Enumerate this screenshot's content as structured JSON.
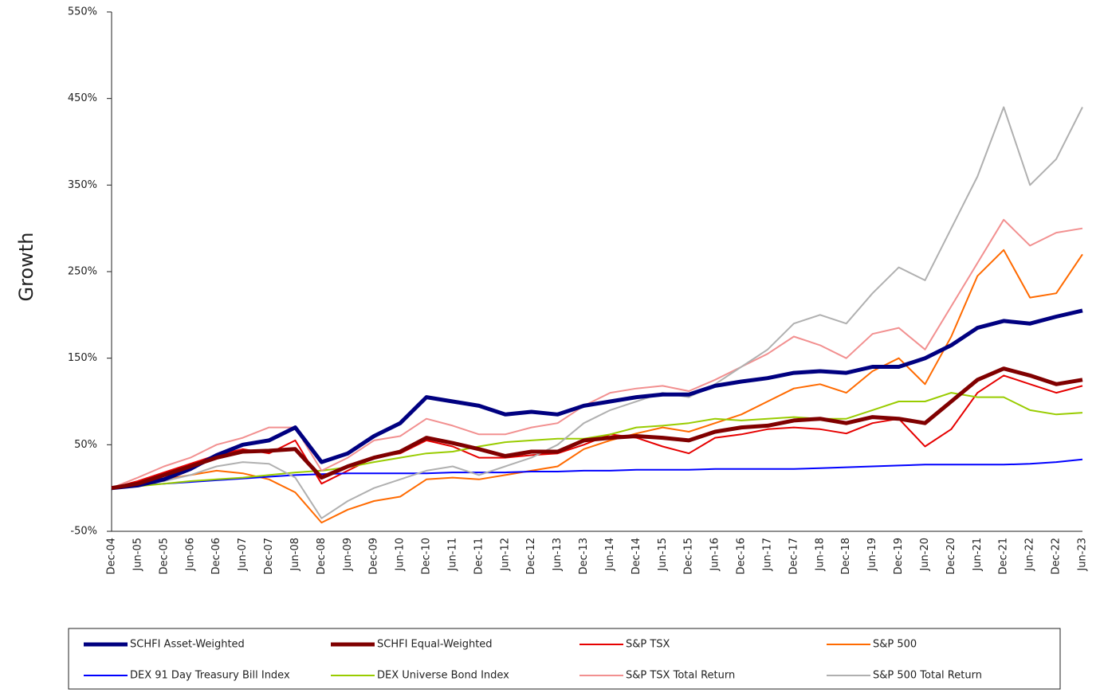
{
  "chart_data": {
    "type": "line",
    "y_label": "Growth",
    "categories": [
      "Dec-04",
      "Jun-05",
      "Dec-05",
      "Jun-06",
      "Dec-06",
      "Jun-07",
      "Dec-07",
      "Jun-08",
      "Dec-08",
      "Jun-09",
      "Dec-09",
      "Jun-10",
      "Dec-10",
      "Jun-11",
      "Dec-11",
      "Jun-12",
      "Dec-12",
      "Jun-13",
      "Dec-13",
      "Jun-14",
      "Dec-14",
      "Jun-15",
      "Dec-15",
      "Jun-16",
      "Dec-16",
      "Jun-17",
      "Dec-17",
      "Jun-18",
      "Dec-18",
      "Jun-19",
      "Dec-19",
      "Jun-20",
      "Dec-20",
      "Jun-21",
      "Dec-21",
      "Jun-22",
      "Dec-22",
      "Jun-23"
    ],
    "ylim": [
      -50,
      550
    ],
    "yticks": [
      {
        "value": -50,
        "label": "-50%"
      },
      {
        "value": 50,
        "label": "50%"
      },
      {
        "value": 150,
        "label": "150%"
      },
      {
        "value": 250,
        "label": "250%"
      },
      {
        "value": 350,
        "label": "350%"
      },
      {
        "value": 450,
        "label": "450%"
      },
      {
        "value": 550,
        "label": "550%"
      }
    ],
    "series": [
      {
        "name": "SCHFI Asset-Weighted",
        "color": "#000080",
        "width": 5,
        "values": [
          0,
          3,
          10,
          22,
          38,
          50,
          55,
          70,
          30,
          40,
          60,
          75,
          105,
          100,
          95,
          85,
          88,
          85,
          95,
          100,
          105,
          108,
          108,
          118,
          123,
          127,
          133,
          135,
          133,
          140,
          140,
          150,
          165,
          185,
          193,
          190,
          198,
          205
        ]
      },
      {
        "name": "SCHFI Equal-Weighted",
        "color": "#800000",
        "width": 5,
        "values": [
          0,
          5,
          15,
          25,
          35,
          42,
          43,
          45,
          12,
          25,
          35,
          42,
          58,
          52,
          45,
          37,
          42,
          42,
          55,
          58,
          60,
          58,
          55,
          65,
          70,
          72,
          78,
          80,
          75,
          82,
          80,
          75,
          100,
          125,
          138,
          130,
          120,
          125
        ]
      },
      {
        "name": "S&P TSX",
        "color": "#e60000",
        "width": 2,
        "values": [
          0,
          8,
          18,
          28,
          38,
          45,
          40,
          55,
          5,
          20,
          35,
          40,
          55,
          48,
          35,
          35,
          38,
          40,
          50,
          62,
          58,
          48,
          40,
          58,
          62,
          68,
          70,
          68,
          63,
          75,
          80,
          48,
          68,
          110,
          130,
          120,
          110,
          118
        ]
      },
      {
        "name": "S&P 500",
        "color": "#ff6a00",
        "width": 2,
        "values": [
          0,
          5,
          10,
          15,
          20,
          17,
          10,
          -5,
          -40,
          -25,
          -15,
          -10,
          10,
          12,
          10,
          15,
          20,
          25,
          45,
          55,
          63,
          70,
          65,
          75,
          85,
          100,
          115,
          120,
          110,
          135,
          150,
          120,
          175,
          245,
          275,
          220,
          225,
          270
        ]
      },
      {
        "name": "DEX 91 Day Treasury Bill Index",
        "color": "#0000ff",
        "width": 2,
        "values": [
          0,
          3,
          5,
          7,
          9,
          11,
          13,
          15,
          16,
          17,
          17,
          17,
          17,
          18,
          18,
          18,
          19,
          19,
          20,
          20,
          21,
          21,
          21,
          22,
          22,
          22,
          22,
          23,
          24,
          25,
          26,
          27,
          27,
          27,
          27,
          28,
          30,
          33
        ]
      },
      {
        "name": "DEX Universe Bond Index",
        "color": "#99cc00",
        "width": 2,
        "values": [
          0,
          2,
          5,
          8,
          10,
          12,
          15,
          18,
          20,
          24,
          30,
          35,
          40,
          42,
          48,
          53,
          55,
          57,
          57,
          62,
          70,
          72,
          75,
          80,
          78,
          80,
          82,
          80,
          80,
          90,
          100,
          100,
          110,
          105,
          105,
          90,
          85,
          87
        ]
      },
      {
        "name": "S&P TSX Total Return",
        "color": "#f29090",
        "width": 2,
        "values": [
          0,
          12,
          25,
          35,
          50,
          58,
          70,
          70,
          20,
          35,
          55,
          60,
          80,
          72,
          62,
          62,
          70,
          75,
          95,
          110,
          115,
          118,
          112,
          125,
          140,
          155,
          175,
          165,
          150,
          178,
          185,
          160,
          210,
          260,
          310,
          280,
          295,
          300
        ]
      },
      {
        "name": "S&P 500 Total Return",
        "color": "#b0b0b0",
        "width": 2,
        "values": [
          0,
          5,
          8,
          15,
          25,
          30,
          28,
          12,
          -35,
          -15,
          0,
          10,
          20,
          25,
          15,
          25,
          35,
          50,
          75,
          90,
          100,
          110,
          105,
          120,
          140,
          160,
          190,
          200,
          190,
          225,
          255,
          240,
          300,
          360,
          440,
          350,
          380,
          440
        ]
      }
    ]
  }
}
